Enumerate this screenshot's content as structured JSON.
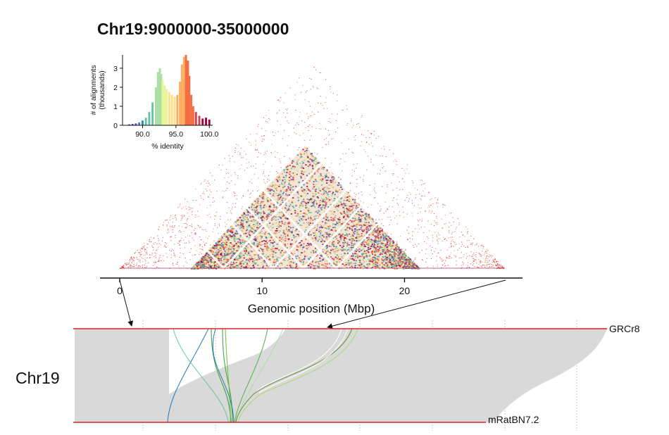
{
  "title": "Chr19:9000000-35000000",
  "palette": [
    "#5e4fa2",
    "#3288bd",
    "#66c2a5",
    "#abdda4",
    "#e6f598",
    "#fee08b",
    "#fdae61",
    "#f46d43",
    "#d53e4f",
    "#9e0142"
  ],
  "chart_data": [
    {
      "type": "bar",
      "name": "identity-histogram",
      "xlabel": "% identity",
      "ylabel": "# of alignments\n(thousands)",
      "xlim": [
        87,
        100.5
      ],
      "ylim": [
        0,
        3.7
      ],
      "xticks": [
        "90.0",
        "95.0",
        "100.0"
      ],
      "xtick_values": [
        90,
        95,
        100
      ],
      "yticks": [
        "0",
        "1",
        "2",
        "3"
      ],
      "ytick_values": [
        0,
        1,
        2,
        3
      ],
      "x": [
        88.0,
        88.5,
        89.0,
        89.5,
        90.0,
        90.5,
        91.0,
        91.5,
        92.0,
        92.3,
        92.6,
        92.8,
        93.0,
        93.3,
        93.6,
        94.0,
        94.4,
        94.8,
        95.2,
        95.6,
        95.9,
        96.2,
        96.5,
        96.8,
        97.0,
        97.3,
        97.6,
        98.0,
        98.5,
        99.0,
        99.5,
        100.0
      ],
      "values": [
        0.05,
        0.07,
        0.1,
        0.15,
        0.25,
        0.4,
        0.7,
        1.2,
        2.0,
        2.8,
        3.0,
        2.7,
        2.4,
        2.1,
        1.9,
        1.75,
        1.6,
        1.5,
        1.6,
        2.3,
        3.2,
        3.6,
        3.7,
        3.4,
        2.6,
        1.6,
        1.0,
        0.7,
        0.5,
        0.35,
        0.4,
        0.3
      ]
    },
    {
      "type": "heatmap",
      "name": "self-identity-triangle",
      "xlabel": "Genomic position (Mbp)",
      "xlim": [
        0,
        27
      ],
      "xticks": [
        "0",
        "10",
        "20"
      ],
      "xtick_values": [
        0,
        10,
        20
      ],
      "dense_region_mbp": [
        5,
        21
      ]
    },
    {
      "type": "diagram",
      "name": "synteny",
      "chromosome": "Chr19",
      "top_label": "GRCr8",
      "bottom_label": "mRatBN7.2",
      "track_color": "#d62728",
      "fill_color": "#d9d9d9"
    }
  ]
}
